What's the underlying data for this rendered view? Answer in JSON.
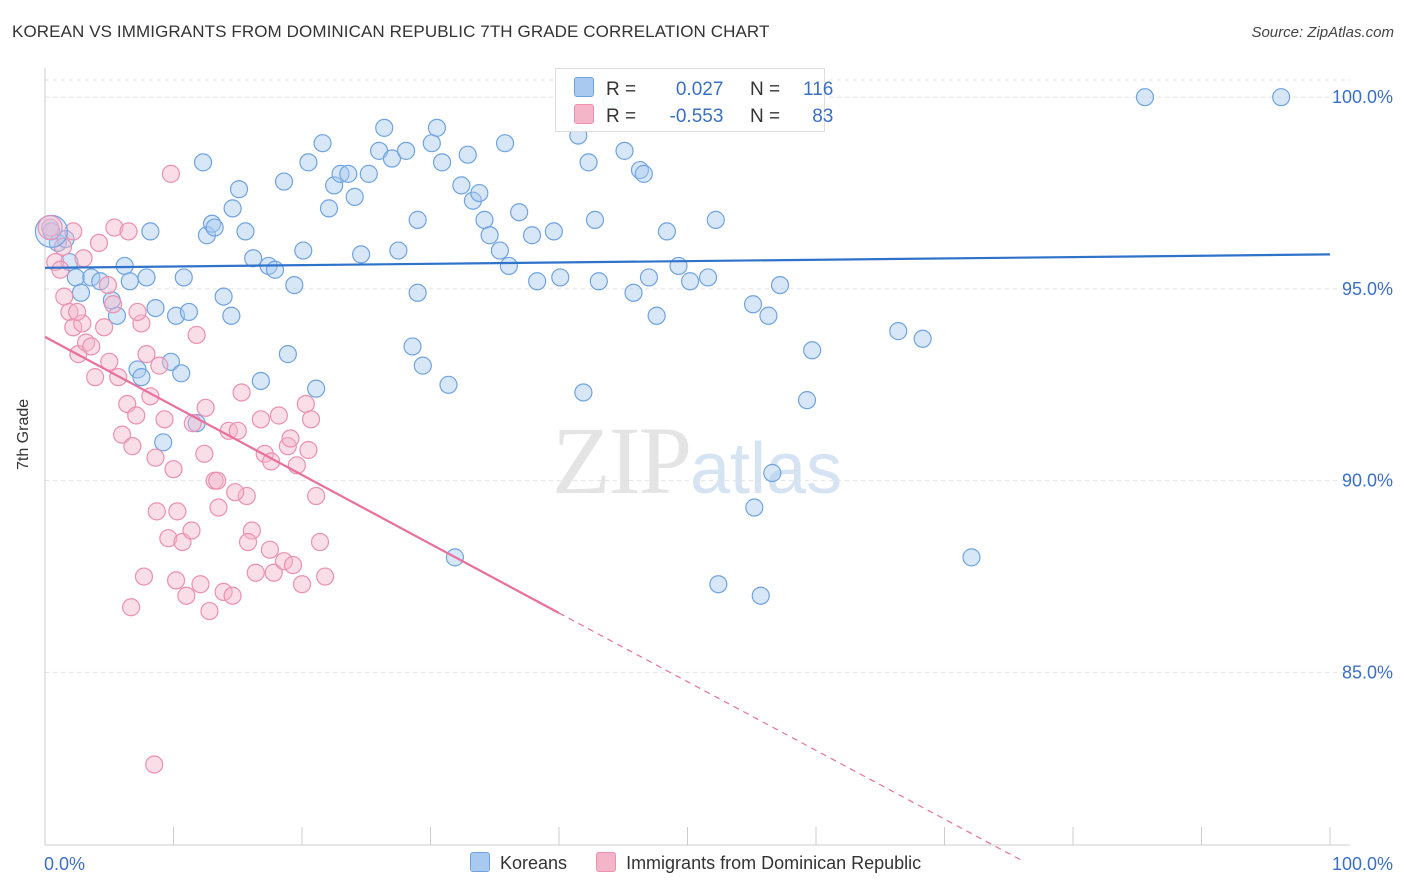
{
  "header": {
    "title": "KOREAN VS IMMIGRANTS FROM DOMINICAN REPUBLIC 7TH GRADE CORRELATION CHART",
    "source": "Source: ZipAtlas.com"
  },
  "watermark": {
    "zip": "ZIP",
    "atlas": "atlas"
  },
  "legend": {
    "rows": [
      {
        "r_label": "R =",
        "r_value": "0.027",
        "n_label": "N =",
        "n_value": "116",
        "color": "#a9c9f0"
      },
      {
        "r_label": "R =",
        "r_value": "-0.553",
        "n_label": "N =",
        "n_value": "83",
        "color": "#f5b5c9"
      }
    ]
  },
  "bottom_legend": {
    "items": [
      {
        "label": "Koreans",
        "color": "#a9c9f0"
      },
      {
        "label": "Immigrants from Dominican Republic",
        "color": "#f5b5c9"
      }
    ]
  },
  "chart_data": {
    "type": "scatter",
    "title": "KOREAN VS IMMIGRANTS FROM DOMINICAN REPUBLIC 7TH GRADE CORRELATION CHART",
    "xlabel": "",
    "ylabel": "7th Grade",
    "xlim": [
      0,
      100
    ],
    "ylim": [
      80.5,
      100.5
    ],
    "x_tick_labels": [
      "0.0%",
      "100.0%"
    ],
    "y_ticks": [
      85,
      90,
      95,
      100
    ],
    "y_tick_labels": [
      "85.0%",
      "90.0%",
      "95.0%",
      "100.0%"
    ],
    "grid": true,
    "legend_position": "top-center",
    "series": [
      {
        "name": "Koreans",
        "color": "#6fa3e0",
        "fill": "#a9c9f0",
        "trend": {
          "x": [
            0,
            100
          ],
          "y": [
            95.55,
            95.9
          ],
          "style": "solid"
        },
        "points": [
          [
            0.5,
            96.5
          ],
          [
            1.0,
            96.2
          ],
          [
            1.6,
            96.3
          ],
          [
            1.9,
            95.7
          ],
          [
            2.4,
            95.3
          ],
          [
            2.8,
            94.9
          ],
          [
            3.6,
            95.3
          ],
          [
            4.3,
            95.2
          ],
          [
            5.2,
            94.7
          ],
          [
            5.6,
            94.3
          ],
          [
            6.2,
            95.6
          ],
          [
            6.6,
            95.2
          ],
          [
            7.2,
            92.9
          ],
          [
            7.5,
            92.7
          ],
          [
            7.9,
            95.3
          ],
          [
            8.2,
            96.5
          ],
          [
            8.6,
            94.5
          ],
          [
            9.2,
            91.0
          ],
          [
            9.8,
            93.1
          ],
          [
            10.2,
            94.3
          ],
          [
            10.6,
            92.8
          ],
          [
            11.2,
            94.4
          ],
          [
            11.8,
            91.5
          ],
          [
            12.3,
            98.3
          ],
          [
            12.6,
            96.4
          ],
          [
            13.0,
            96.7
          ],
          [
            13.2,
            96.6
          ],
          [
            13.9,
            94.8
          ],
          [
            14.6,
            97.1
          ],
          [
            15.1,
            97.6
          ],
          [
            15.6,
            96.5
          ],
          [
            16.2,
            95.8
          ],
          [
            16.8,
            92.6
          ],
          [
            17.4,
            95.6
          ],
          [
            17.9,
            95.5
          ],
          [
            18.6,
            97.8
          ],
          [
            18.9,
            93.3
          ],
          [
            19.4,
            95.1
          ],
          [
            20.1,
            96.0
          ],
          [
            20.5,
            98.3
          ],
          [
            21.1,
            92.4
          ],
          [
            21.6,
            98.8
          ],
          [
            22.1,
            97.1
          ],
          [
            22.5,
            97.7
          ],
          [
            23.0,
            98.0
          ],
          [
            23.6,
            98.0
          ],
          [
            24.1,
            97.4
          ],
          [
            24.6,
            95.9
          ],
          [
            25.2,
            98.0
          ],
          [
            26.0,
            98.6
          ],
          [
            26.4,
            99.2
          ],
          [
            27.0,
            98.4
          ],
          [
            27.5,
            96.0
          ],
          [
            28.1,
            98.6
          ],
          [
            28.6,
            93.5
          ],
          [
            29.0,
            96.8
          ],
          [
            29.4,
            93.0
          ],
          [
            30.1,
            98.8
          ],
          [
            30.5,
            99.2
          ],
          [
            30.9,
            98.3
          ],
          [
            31.4,
            92.5
          ],
          [
            31.9,
            88.0
          ],
          [
            32.4,
            97.7
          ],
          [
            32.9,
            98.5
          ],
          [
            33.3,
            97.3
          ],
          [
            33.8,
            97.5
          ],
          [
            34.2,
            96.8
          ],
          [
            34.6,
            96.4
          ],
          [
            35.4,
            96.0
          ],
          [
            35.8,
            98.8
          ],
          [
            36.1,
            95.6
          ],
          [
            36.9,
            97.0
          ],
          [
            37.9,
            96.4
          ],
          [
            38.3,
            95.2
          ],
          [
            40.1,
            95.3
          ],
          [
            41.5,
            99.0
          ],
          [
            41.9,
            92.3
          ],
          [
            42.3,
            98.3
          ],
          [
            42.8,
            96.8
          ],
          [
            43.1,
            95.2
          ],
          [
            44.1,
            99.9
          ],
          [
            45.1,
            98.6
          ],
          [
            45.8,
            94.9
          ],
          [
            46.3,
            98.1
          ],
          [
            46.6,
            98.0
          ],
          [
            47.0,
            95.3
          ],
          [
            47.6,
            94.3
          ],
          [
            48.4,
            96.5
          ],
          [
            49.3,
            95.6
          ],
          [
            50.2,
            95.2
          ],
          [
            51.6,
            95.3
          ],
          [
            52.2,
            96.8
          ],
          [
            55.1,
            94.6
          ],
          [
            56.3,
            94.3
          ],
          [
            57.2,
            95.1
          ],
          [
            59.7,
            93.4
          ],
          [
            66.4,
            93.9
          ],
          [
            68.3,
            93.7
          ],
          [
            72.1,
            88.0
          ],
          [
            85.6,
            100.0
          ],
          [
            96.2,
            100.0
          ],
          [
            55.7,
            87.0
          ],
          [
            56.6,
            90.2
          ],
          [
            55.2,
            89.3
          ],
          [
            59.3,
            92.1
          ],
          [
            52.4,
            87.3
          ],
          [
            39.6,
            96.5
          ],
          [
            29.0,
            94.9
          ],
          [
            14.5,
            94.3
          ],
          [
            10.8,
            95.3
          ]
        ]
      },
      {
        "name": "Immigrants from Dominican Republic",
        "color": "#ec8fb0",
        "fill": "#f5b5c9",
        "trend": {
          "x": [
            0,
            40
          ],
          "y": [
            93.75,
            86.55
          ],
          "dashed_to": [
            76,
            80.1
          ]
        },
        "points": [
          [
            0.4,
            96.6
          ],
          [
            0.8,
            95.7
          ],
          [
            1.2,
            95.5
          ],
          [
            1.5,
            94.8
          ],
          [
            1.9,
            94.4
          ],
          [
            2.2,
            94.0
          ],
          [
            2.6,
            93.3
          ],
          [
            2.9,
            94.1
          ],
          [
            3.2,
            93.6
          ],
          [
            3.6,
            93.5
          ],
          [
            3.9,
            92.7
          ],
          [
            4.2,
            96.2
          ],
          [
            4.6,
            94.0
          ],
          [
            5.0,
            93.1
          ],
          [
            5.3,
            94.6
          ],
          [
            5.7,
            92.7
          ],
          [
            6.0,
            91.2
          ],
          [
            6.4,
            92.0
          ],
          [
            6.8,
            90.9
          ],
          [
            7.1,
            91.7
          ],
          [
            7.5,
            94.1
          ],
          [
            7.9,
            93.3
          ],
          [
            8.2,
            92.2
          ],
          [
            8.6,
            90.6
          ],
          [
            8.9,
            93.0
          ],
          [
            9.3,
            91.6
          ],
          [
            9.6,
            88.5
          ],
          [
            10.0,
            90.3
          ],
          [
            10.3,
            89.2
          ],
          [
            10.7,
            88.4
          ],
          [
            11.0,
            87.0
          ],
          [
            11.4,
            88.7
          ],
          [
            11.8,
            93.8
          ],
          [
            12.1,
            87.3
          ],
          [
            12.5,
            91.9
          ],
          [
            12.8,
            86.6
          ],
          [
            13.2,
            90.0
          ],
          [
            13.5,
            89.3
          ],
          [
            13.9,
            87.1
          ],
          [
            14.3,
            91.3
          ],
          [
            14.6,
            87.0
          ],
          [
            15.0,
            91.3
          ],
          [
            15.3,
            92.3
          ],
          [
            15.7,
            89.6
          ],
          [
            16.1,
            88.7
          ],
          [
            16.4,
            87.6
          ],
          [
            16.8,
            91.6
          ],
          [
            17.1,
            90.7
          ],
          [
            17.5,
            88.2
          ],
          [
            17.8,
            87.6
          ],
          [
            18.2,
            91.7
          ],
          [
            18.6,
            87.9
          ],
          [
            18.9,
            90.9
          ],
          [
            19.3,
            87.8
          ],
          [
            19.6,
            90.4
          ],
          [
            20.0,
            87.3
          ],
          [
            20.3,
            92.0
          ],
          [
            20.7,
            91.6
          ],
          [
            21.1,
            89.6
          ],
          [
            21.4,
            88.4
          ],
          [
            6.7,
            86.7
          ],
          [
            7.7,
            87.5
          ],
          [
            8.5,
            82.6
          ],
          [
            9.8,
            98.0
          ],
          [
            2.2,
            96.5
          ],
          [
            3.0,
            95.8
          ],
          [
            5.4,
            96.6
          ],
          [
            6.5,
            96.5
          ],
          [
            1.4,
            96.1
          ],
          [
            2.5,
            94.4
          ],
          [
            4.9,
            95.1
          ],
          [
            7.2,
            94.4
          ],
          [
            8.7,
            89.2
          ],
          [
            11.5,
            91.5
          ],
          [
            13.4,
            90.0
          ],
          [
            15.8,
            88.4
          ],
          [
            17.6,
            90.5
          ],
          [
            19.1,
            91.1
          ],
          [
            20.5,
            90.8
          ],
          [
            21.8,
            87.5
          ],
          [
            10.2,
            87.4
          ],
          [
            12.4,
            90.7
          ],
          [
            14.8,
            89.7
          ]
        ]
      }
    ]
  }
}
